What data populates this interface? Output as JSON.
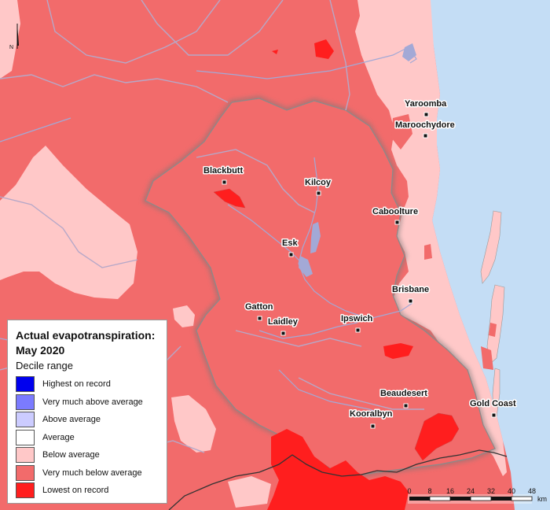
{
  "legend": {
    "title_line1": "Actual evapotranspiration:",
    "title_line2": "May 2020",
    "subtitle": "Decile range",
    "items": [
      {
        "label": "Highest on record",
        "color": "#0000ee"
      },
      {
        "label": "Very much above average",
        "color": "#7b7bff"
      },
      {
        "label": "Above average",
        "color": "#ccccff"
      },
      {
        "label": "Average",
        "color": "#ffffff"
      },
      {
        "label": "Below average",
        "color": "#ffc8c8"
      },
      {
        "label": "Very much below average",
        "color": "#f26b6b"
      },
      {
        "label": "Lowest on record",
        "color": "#ff1e1e"
      }
    ]
  },
  "towns": [
    {
      "name": "Yaroomba"
    },
    {
      "name": "Maroochydore"
    },
    {
      "name": "Blackbutt"
    },
    {
      "name": "Kilcoy"
    },
    {
      "name": "Caboolture"
    },
    {
      "name": "Esk"
    },
    {
      "name": "Brisbane"
    },
    {
      "name": "Gatton"
    },
    {
      "name": "Laidley"
    },
    {
      "name": "Ipswich"
    },
    {
      "name": "Beaudesert"
    },
    {
      "name": "Gold Coast"
    },
    {
      "name": "Kooralbyn"
    }
  ],
  "scale_bar": {
    "ticks": [
      "0",
      "8",
      "16",
      "24",
      "32",
      "40",
      "48"
    ],
    "unit": "km"
  },
  "north_arrow": {
    "label": "N",
    "icon": "north-arrow-icon"
  },
  "colors": {
    "ocean": "#c4ddf5",
    "river": "#a3a9d6",
    "boundary": "#b6a8c8"
  }
}
